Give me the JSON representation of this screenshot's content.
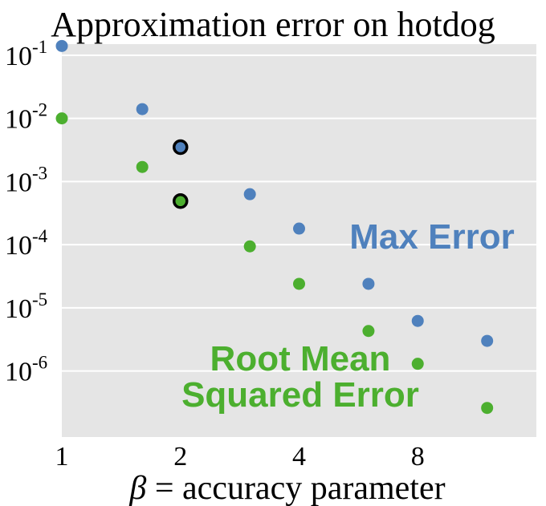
{
  "chart_data": {
    "type": "scatter",
    "title": "Approximation error on hotdog",
    "xlabel": "β = accuracy parameter",
    "xlabel_symbol": "β",
    "xlabel_rest": " = accuracy parameter",
    "ylabel": "",
    "x_scale": "log2",
    "y_scale": "log10",
    "xlim": [
      1,
      16
    ],
    "ylim": [
      9e-08,
      0.15
    ],
    "x_ticks": [
      {
        "value": 1,
        "label": "1"
      },
      {
        "value": 2,
        "label": "2"
      },
      {
        "value": 4,
        "label": "4"
      },
      {
        "value": 8,
        "label": "8"
      }
    ],
    "y_ticks": [
      {
        "value": 0.1,
        "base": "10",
        "exp": "-1"
      },
      {
        "value": 0.01,
        "base": "10",
        "exp": "-2"
      },
      {
        "value": 0.001,
        "base": "10",
        "exp": "-3"
      },
      {
        "value": 0.0001,
        "base": "10",
        "exp": "-4"
      },
      {
        "value": 1e-05,
        "base": "10",
        "exp": "-5"
      },
      {
        "value": 1e-06,
        "base": "10",
        "exp": "-6"
      }
    ],
    "grid": true,
    "background": "#e5e5e5",
    "series": [
      {
        "name": "Max Error",
        "color": "#4f81bd",
        "x": [
          1,
          1.6,
          2,
          3,
          4,
          6,
          8,
          12
        ],
        "y": [
          0.14,
          0.014,
          0.0035,
          0.00063,
          0.00018,
          2.4e-05,
          6.2e-06,
          3e-06
        ]
      },
      {
        "name": "Root Mean Squared Error",
        "color": "#4caf2f",
        "x": [
          1,
          1.6,
          2,
          3,
          4,
          6,
          8,
          12
        ],
        "y": [
          0.01,
          0.0017,
          0.00049,
          9.4e-05,
          2.4e-05,
          4.3e-06,
          1.3e-06,
          2.6e-07
        ]
      }
    ],
    "highlighted_points": [
      {
        "series": 0,
        "index": 2
      },
      {
        "series": 1,
        "index": 2
      }
    ],
    "annotations": [
      {
        "lines": [
          "Max Error"
        ],
        "color": "#4f81bd"
      },
      {
        "lines": [
          "Root Mean",
          "Squared Error"
        ],
        "color": "#4caf2f"
      }
    ]
  }
}
